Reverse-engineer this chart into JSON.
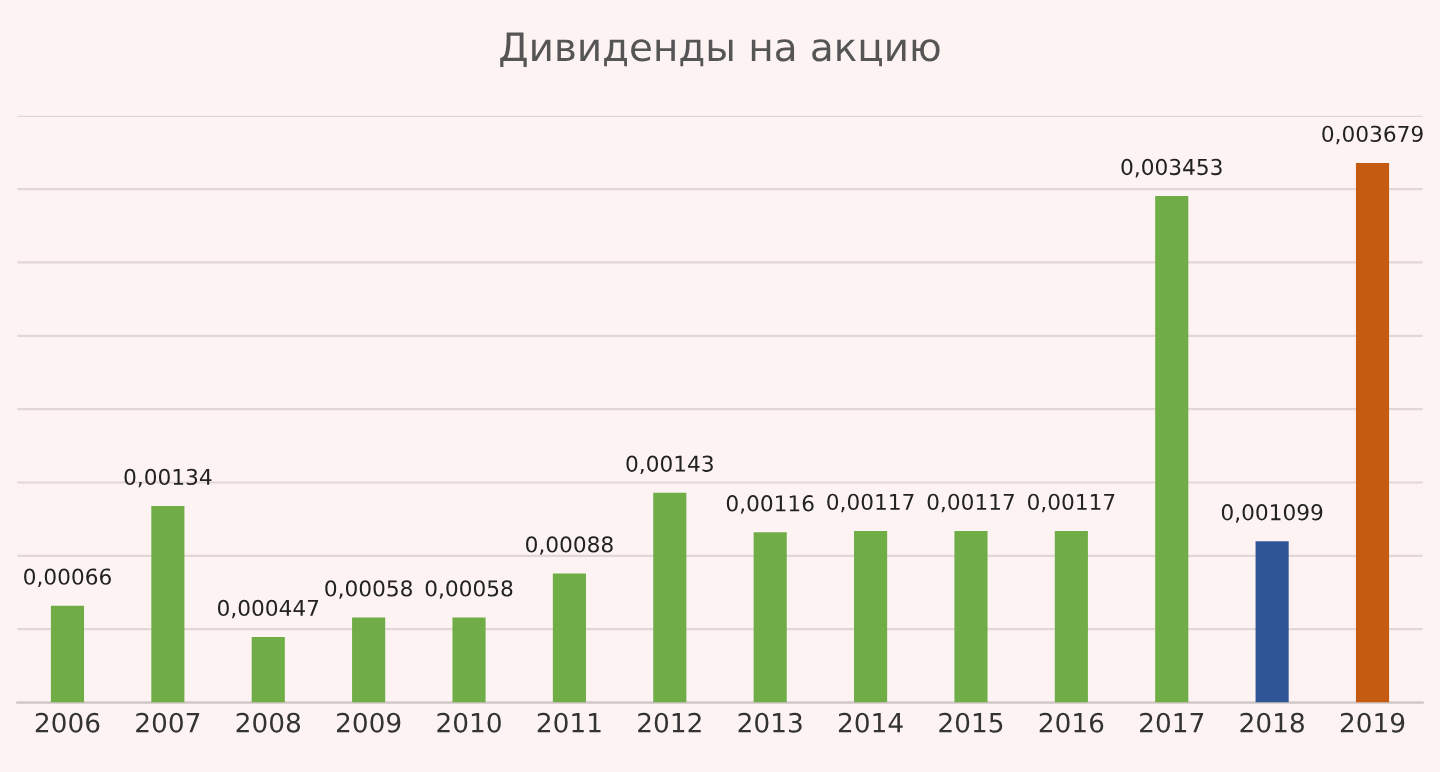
{
  "chart_data": {
    "type": "bar",
    "title": "Дивиденды на акцию",
    "categories": [
      "2006",
      "2007",
      "2008",
      "2009",
      "2010",
      "2011",
      "2012",
      "2013",
      "2014",
      "2015",
      "2016",
      "2017",
      "2018",
      "2019"
    ],
    "values": [
      0.00066,
      0.00134,
      0.000447,
      0.00058,
      0.00058,
      0.00088,
      0.00143,
      0.00116,
      0.00117,
      0.00117,
      0.00117,
      0.003453,
      0.001099,
      0.003679
    ],
    "value_labels": [
      "0,00066",
      "0,00134",
      "0,000447",
      "0,00058",
      "0,00058",
      "0,00088",
      "0,00143",
      "0,00116",
      "0,00117",
      "0,00117",
      "0,00117",
      "0,003453",
      "0,001099",
      "0,003679"
    ],
    "colors": [
      "#70ad47",
      "#70ad47",
      "#70ad47",
      "#70ad47",
      "#70ad47",
      "#70ad47",
      "#70ad47",
      "#70ad47",
      "#70ad47",
      "#70ad47",
      "#70ad47",
      "#70ad47",
      "#2f5597",
      "#c55a11"
    ],
    "ylim": [
      0,
      0.004
    ],
    "yticks": [
      {
        "value": 0,
        "label": null
      },
      {
        "value": 0.0005,
        "label": null
      },
      {
        "value": 0.001,
        "label": null
      },
      {
        "value": 0.0015,
        "label": null
      },
      {
        "value": 0.002,
        "label": null
      },
      {
        "value": 0.0025,
        "label": null
      },
      {
        "value": 0.003,
        "label": null
      },
      {
        "value": 0.0035,
        "label": null
      },
      {
        "value": 0.004,
        "label": null
      }
    ],
    "tick_labels": "x",
    "grid": "y"
  }
}
